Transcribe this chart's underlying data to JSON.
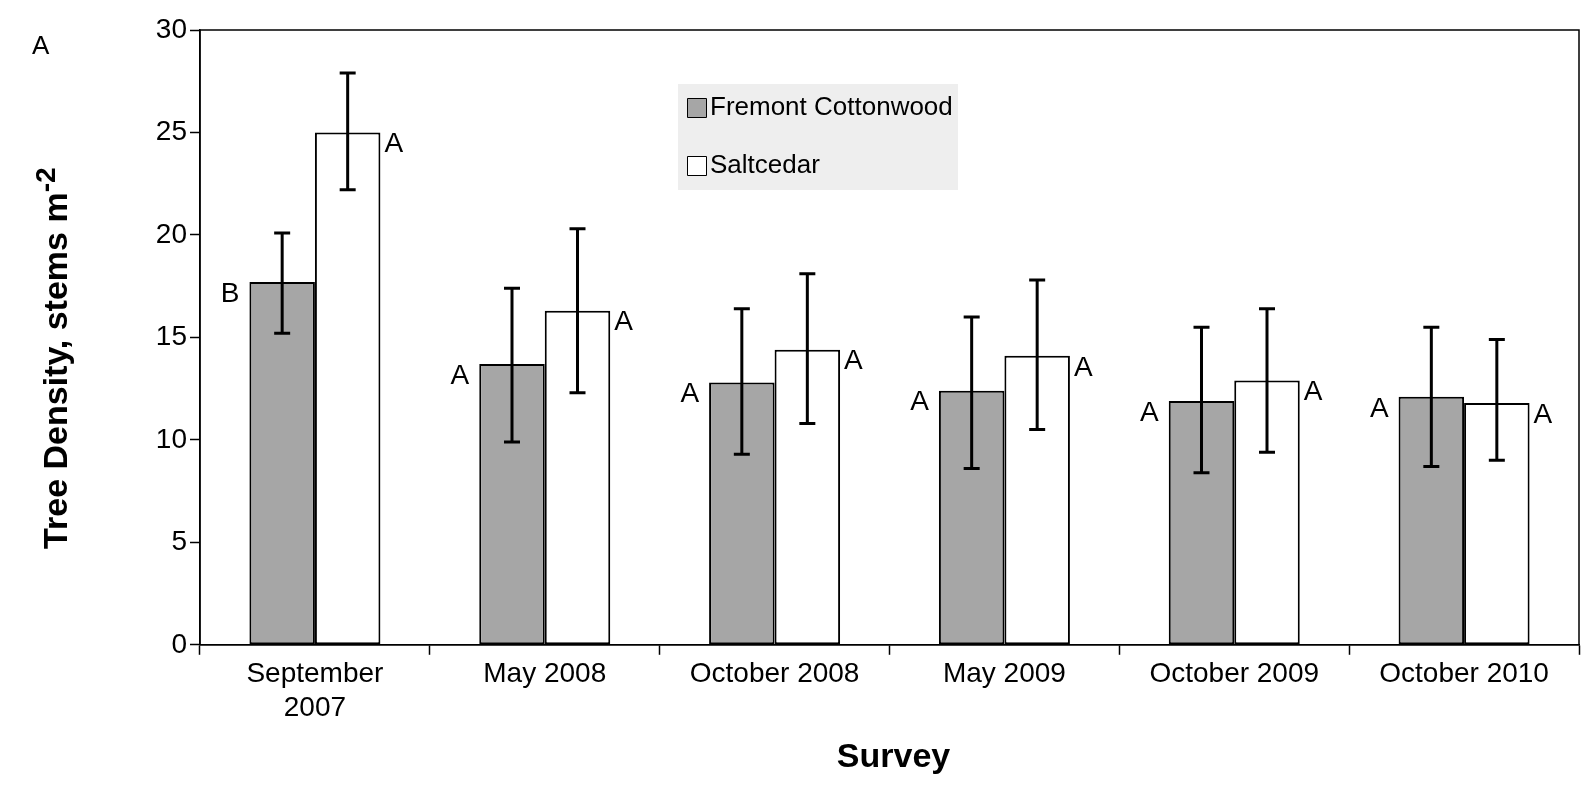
{
  "chart_data": {
    "type": "bar",
    "title": "A",
    "xlabel": "Survey",
    "ylabel": "Tree Density, stems m$^{-2}$",
    "categories": [
      "September 2007",
      "May 2008",
      "October 2008",
      "May 2009",
      "October 2009",
      "October 2010"
    ],
    "series": [
      {
        "name": "Fremont Cottonwood",
        "color": "#a6a6a6",
        "values": [
          17.7,
          13.7,
          12.8,
          12.4,
          11.9,
          12.1
        ],
        "errors": [
          [
            15.2,
            20.1
          ],
          [
            9.9,
            17.4
          ],
          [
            9.3,
            16.4
          ],
          [
            8.6,
            16.0
          ],
          [
            8.4,
            15.5
          ],
          [
            8.7,
            15.5
          ]
        ],
        "value_labels": [
          "B",
          "A",
          "A",
          "A",
          "A",
          "A"
        ]
      },
      {
        "name": "Saltcedar",
        "color": "#ffffff",
        "values": [
          25.0,
          16.3,
          14.4,
          14.1,
          12.9,
          11.8
        ],
        "errors": [
          [
            22.2,
            27.9
          ],
          [
            12.3,
            20.3
          ],
          [
            10.8,
            18.1
          ],
          [
            10.5,
            17.8
          ],
          [
            9.4,
            16.4
          ],
          [
            9.0,
            14.9
          ]
        ],
        "value_labels": [
          "A",
          "A",
          "A",
          "A",
          "A",
          "A"
        ]
      }
    ],
    "ylim": [
      0,
      30
    ],
    "yticks": [
      0,
      5,
      10,
      15,
      20,
      25,
      30
    ],
    "grid": false,
    "legend": "top"
  }
}
